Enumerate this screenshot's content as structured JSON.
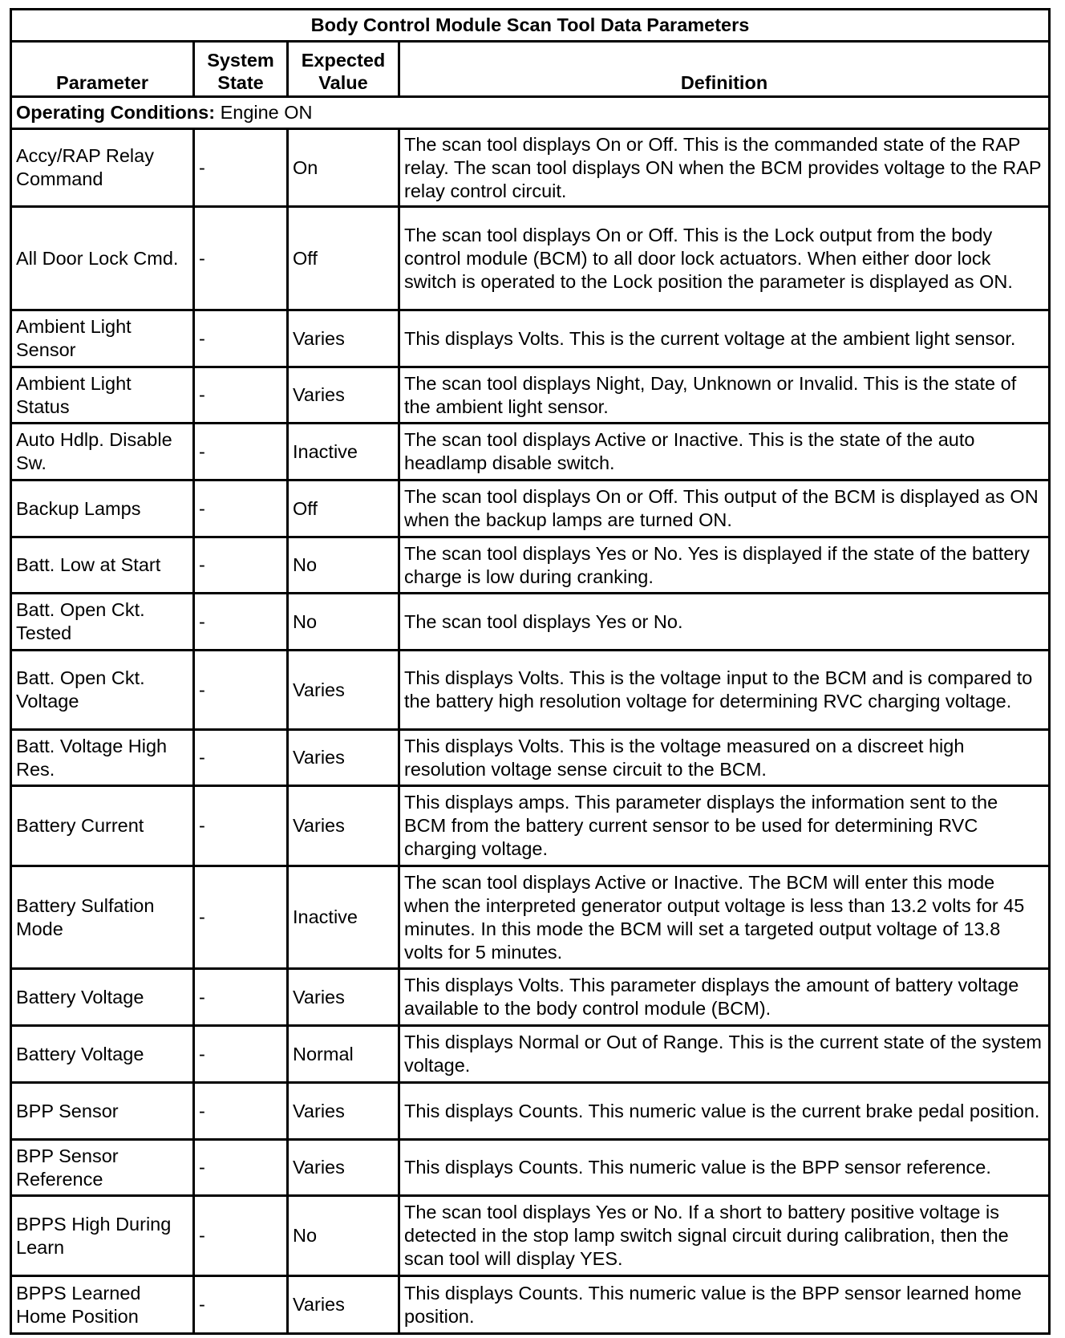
{
  "title": "Body Control Module Scan Tool Data Parameters",
  "headers": {
    "parameter": "Parameter",
    "system_state": "System State",
    "expected_value": "Expected Value",
    "definition": "Definition"
  },
  "operating_conditions": {
    "label": "Operating Conditions:",
    "value": "Engine ON"
  },
  "rows": [
    {
      "parameter": "Accy/RAP Relay Command",
      "state": "-",
      "value": "On",
      "definition": "The scan tool displays On or Off. This is the commanded state of the RAP relay. The scan tool displays ON when the BCM provides voltage to the RAP relay control circuit."
    },
    {
      "parameter": "All Door Lock Cmd.",
      "state": "-",
      "value": "Off",
      "definition": "The scan tool displays On or Off. This is the Lock output from the body control module (BCM) to all door lock actuators. When either door lock switch is operated to the Lock position the parameter is displayed as ON."
    },
    {
      "parameter": "Ambient Light Sensor",
      "state": "-",
      "value": "Varies",
      "definition": "This displays Volts. This is the current voltage at the ambient light sensor."
    },
    {
      "parameter": "Ambient Light Status",
      "state": "-",
      "value": "Varies",
      "definition": "The scan tool displays Night, Day, Unknown or Invalid. This is the state of the ambient light sensor."
    },
    {
      "parameter": "Auto Hdlp. Disable Sw.",
      "state": "-",
      "value": "Inactive",
      "definition": "The scan tool displays Active or Inactive. This is the state of the auto headlamp disable switch."
    },
    {
      "parameter": "Backup Lamps",
      "state": "-",
      "value": "Off",
      "definition": "The scan tool displays On or Off. This output of the BCM is displayed as ON when the backup lamps are turned ON."
    },
    {
      "parameter": "Batt. Low at Start",
      "state": "-",
      "value": "No",
      "definition": "The scan tool displays Yes or No. Yes is displayed if the state of the battery charge is low during cranking."
    },
    {
      "parameter": "Batt. Open Ckt. Tested",
      "state": "-",
      "value": "No",
      "definition": "The scan tool displays Yes or No."
    },
    {
      "parameter": "Batt. Open Ckt. Voltage",
      "state": "-",
      "value": "Varies",
      "definition": "This displays Volts. This is the voltage input to the BCM and is compared to the battery high resolution voltage for determining RVC charging voltage."
    },
    {
      "parameter": "Batt. Voltage High Res.",
      "state": "-",
      "value": "Varies",
      "definition": "This displays Volts. This is the voltage measured on a discreet high resolution voltage sense circuit to the BCM."
    },
    {
      "parameter": "Battery Current",
      "state": "-",
      "value": "Varies",
      "definition": "This displays amps. This parameter displays the information sent to the BCM from the battery current sensor to be used for determining RVC charging voltage."
    },
    {
      "parameter": "Battery Sulfation Mode",
      "state": "-",
      "value": "Inactive",
      "definition": "The scan tool displays Active or Inactive. The BCM will enter this mode when the interpreted generator output voltage is less than 13.2 volts for 45 minutes. In this mode the BCM will set a targeted output voltage of 13.8 volts for 5 minutes."
    },
    {
      "parameter": "Battery Voltage",
      "state": "-",
      "value": "Varies",
      "definition": "This displays Volts. This parameter displays the amount of battery voltage available to the body control module (BCM)."
    },
    {
      "parameter": "Battery Voltage",
      "state": "-",
      "value": "Normal",
      "definition": "This displays Normal or Out of Range. This is the current state of the system voltage."
    },
    {
      "parameter": "BPP Sensor",
      "state": "-",
      "value": "Varies",
      "definition": "This displays Counts. This numeric value is the current brake pedal position."
    },
    {
      "parameter": "BPP Sensor Reference",
      "state": "-",
      "value": "Varies",
      "definition": "This displays Counts. This numeric value is the BPP sensor reference."
    },
    {
      "parameter": "BPPS High During Learn",
      "state": "-",
      "value": "No",
      "definition": "The scan tool displays Yes or No. If a short to battery positive voltage is detected in the stop lamp switch signal circuit during calibration, then the scan tool will display YES."
    },
    {
      "parameter": "BPPS Learned Home Position",
      "state": "-",
      "value": "Varies",
      "definition": "This displays Counts. This numeric value is the BPP sensor learned home position."
    }
  ]
}
